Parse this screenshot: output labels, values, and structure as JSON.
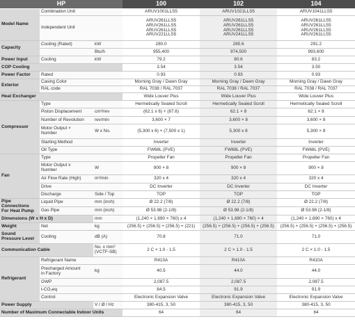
{
  "header": {
    "label": "HP",
    "models": [
      "100",
      "102",
      "104"
    ]
  },
  "rows": [
    {
      "group": "",
      "item": "Combination Unit",
      "unit": "",
      "values": [
        "ARUV1001LLS5",
        "ARUV1021LLS5",
        "ARUV1041LLS5"
      ],
      "h": 9
    },
    {
      "group": "Model Name",
      "gspan": 2,
      "item": "",
      "unit": "",
      "values": [
        "",
        "",
        ""
      ],
      "h": 0,
      "skip": true
    },
    {
      "group": "",
      "item": "Independent Unit",
      "unit": "",
      "values": [
        "ARUV261LLS5\nARUV261LLS5\nARUV261LLS5\nARUV221LLS5",
        "ARUV261LLS5\nARUV261LLS5\nARUV261LLS5\nARUV241LLS5",
        "ARUV261LLS5\nARUV261LLS5\nARUV261LLS5\nARUV261LLS5"
      ],
      "h": 36
    }
  ],
  "table": [
    {
      "group": "Model Name",
      "items": [
        {
          "item": "Combination Unit",
          "unit": "",
          "values": [
            "ARUV1001LLS5",
            "ARUV1021LLS5",
            "ARUV1041LLS5"
          ],
          "h": 9
        },
        {
          "item": "Independent Unit",
          "unit": "",
          "values": [
            "ARUV261LLS5\nARUV261LLS5\nARUV261LLS5\nARUV221LLS5",
            "ARUV261LLS5\nARUV261LLS5\nARUV261LLS5\nARUV241LLS5",
            "ARUV261LLS5\nARUV261LLS5\nARUV261LLS5\nARUV261LLS5"
          ],
          "h": 35
        }
      ]
    },
    {
      "group": "Capacity",
      "items": [
        {
          "item": "Cooling (Rated)",
          "unit": "kW",
          "values": [
            "280.0",
            "285.6",
            "291.2"
          ],
          "h": 10
        },
        {
          "item": "",
          "unit": "Btu/h",
          "values": [
            "955,400",
            "974,500",
            "993,600"
          ],
          "h": 10
        }
      ]
    },
    {
      "group": "Power Input",
      "items": [
        {
          "item": "Cooling",
          "unit": "kW",
          "values": [
            "79.2",
            "80.6",
            "83.2"
          ],
          "h": 10
        }
      ]
    },
    {
      "group": "COP Cooling",
      "items": [
        {
          "item": "",
          "unit": "",
          "values": [
            "3.54",
            "3.54",
            "3.50"
          ],
          "h": 10
        }
      ]
    },
    {
      "group": "Power Factor",
      "items": [
        {
          "item": "Rated",
          "unit": "",
          "values": [
            "0.93",
            "0.93",
            "0.93"
          ],
          "h": 10
        }
      ]
    },
    {
      "group": "Exterior",
      "items": [
        {
          "item": "Casing Color",
          "unit": "",
          "values": [
            "Morning Gray / Dawn Gray",
            "Morning Gray / Dawn Gray",
            "Morning Gray / Dawn Gray"
          ],
          "h": 9
        },
        {
          "item": "RAL code",
          "unit": "",
          "values": [
            "RAL 7038 / RAL 7037",
            "RAL 7038 / RAL 7037",
            "RAL 7038 / RAL 7037"
          ],
          "h": 9
        }
      ]
    },
    {
      "group": "Heat Exchanger",
      "items": [
        {
          "item": "",
          "unit": "",
          "values": [
            "Wide Louver Plus",
            "Wide Louver Plus",
            "Wide Louver Plus"
          ],
          "h": 10
        }
      ]
    },
    {
      "group": "Compressor",
      "items": [
        {
          "item": "Type",
          "unit": "",
          "values": [
            "Hermetically Sealed Scroll",
            "Hermetically Sealed Scroll",
            "Hermetically Sealed Scroll"
          ],
          "h": 10
        },
        {
          "item": "Piston Displacement",
          "unit": "cm³/rev",
          "values": [
            "(62.1 x 6) + (87.6)",
            "62.1 × 8",
            "62.1 × 8"
          ],
          "h": 11
        },
        {
          "item": "Number of Revolution",
          "unit": "rev/min",
          "values": [
            "3,600 × 7",
            "3,600 × 8",
            "3,600 × 8"
          ],
          "h": 10
        },
        {
          "item": "Motor Output ×\nNumber",
          "unit": "W x No.",
          "values": [
            "(5,300 x 6) + (7,500 x 1)",
            "5,300 x 8",
            "5,300 × 8"
          ],
          "h": 20
        },
        {
          "item": "Starting Method",
          "unit": "",
          "values": [
            "Inverter",
            "Inverter",
            "Inverter"
          ],
          "h": 10
        },
        {
          "item": "Oil Type",
          "unit": "",
          "values": [
            "FW68L (PVE)",
            "FW68L (PVE)",
            "FW68L (PVE)"
          ],
          "h": 10
        }
      ]
    },
    {
      "group": "Fan",
      "items": [
        {
          "item": "Type",
          "unit": "",
          "values": [
            "Propeller Fan",
            "Propeller Fan",
            "Propeller Fan"
          ],
          "h": 10
        },
        {
          "item": "Motor Output x\nNumber",
          "unit": "W",
          "values": [
            "900 × 8",
            "900 × 8",
            "900 × 8"
          ],
          "h": 18
        },
        {
          "item": "Air Flow Rate (High)",
          "unit": "m³/min",
          "values": [
            "320 x 4",
            "320 x 4",
            "320 x 4"
          ],
          "h": 11
        },
        {
          "item": "Drive",
          "unit": "",
          "values": [
            "DC Inverter",
            "DC Inverter",
            "DC Inverter"
          ],
          "h": 10
        },
        {
          "item": "Discharge",
          "unit": "Side / Top",
          "values": [
            "TOP",
            "TOP",
            "TOP"
          ],
          "h": 10
        }
      ]
    },
    {
      "group": "Pipe\nConnections\nFor Heat Pump",
      "items": [
        {
          "item": "Liquid Pipe",
          "unit": "mm (inch)",
          "values": [
            "Ø 22.2 (7/8)",
            "Ø 22.2 (7/8)",
            "Ø 22.2 (7/8)"
          ],
          "h": 11
        },
        {
          "item": "Gas Pipe",
          "unit": "mm (inch)",
          "values": [
            "Ø 53.98 (2-1/8)",
            "Ø 53.98 (2-1/8)",
            "Ø 53.98 (2-1/8)"
          ],
          "h": 11
        }
      ]
    },
    {
      "group": "Dimensions (W x H x D)",
      "items": [
        {
          "item": "",
          "unit": "mm",
          "values": [
            "(1,240 × 1,690 × 760) x 4",
            "(1,240 × 1,690 × 760) × 4",
            "(1,240 × 1,690 × 760) x 4"
          ],
          "h": 10
        }
      ]
    },
    {
      "group": "Weight",
      "items": [
        {
          "item": "Net",
          "unit": "kg",
          "values": [
            "(256.5) + (256.5) + (256.5) + (221)",
            "(256.5) + (256.5) + (256.5) + (256.5)",
            "(256.5) + (256.5) + (256.5) + (256.5)"
          ],
          "h": 10
        }
      ]
    },
    {
      "group": "Sound\nPressure Level",
      "items": [
        {
          "item": "Cooling",
          "unit": "dB (A)",
          "values": [
            "70.8",
            "71.0",
            "71.0"
          ],
          "h": 18
        }
      ]
    },
    {
      "group": "Communication Cable",
      "items": [
        {
          "item": "",
          "unit": "No. x mm²\n(VCTF-SB)",
          "values": [
            "2 C × 1.0 - 1.5",
            "2 C × 1.0 - 1.5",
            "2 C × 1.0 - 1.5"
          ],
          "h": 18
        }
      ]
    },
    {
      "group": "Refrigerant",
      "items": [
        {
          "item": "Refrigerant Name",
          "unit": "",
          "values": [
            "R410A",
            "R410A",
            "R410A"
          ],
          "h": 10
        },
        {
          "item": "Precharged Amount\nin Factory",
          "unit": "kg",
          "values": [
            "40.5",
            "44.0",
            "44.0"
          ],
          "h": 19
        },
        {
          "item": "GWP",
          "unit": "",
          "values": [
            "2,087.5",
            "2,087.5",
            "2,087.5"
          ],
          "h": 10
        },
        {
          "item": "t-CO₂eq",
          "unit": "",
          "values": [
            "84.5",
            "91.9",
            "91.9"
          ],
          "h": 10
        },
        {
          "item": "Control",
          "unit": "",
          "values": [
            "Electronic Expansion Valve",
            "Electronic Expansion Valve",
            "Electronic Expansion Valve"
          ],
          "h": 10
        }
      ]
    },
    {
      "group": "Power Supply",
      "items": [
        {
          "item": "",
          "unit": "V / Ø / Hz",
          "values": [
            "380-415, 3, 50",
            "380-415, 3, 50",
            "380-415, 3, 50"
          ],
          "h": 10
        }
      ]
    },
    {
      "group": "Number of Maximum Connectable Indoor Units",
      "items": [
        {
          "item": "",
          "unit": "",
          "values": [
            "64",
            "64",
            "64"
          ],
          "h": 10
        }
      ]
    }
  ]
}
